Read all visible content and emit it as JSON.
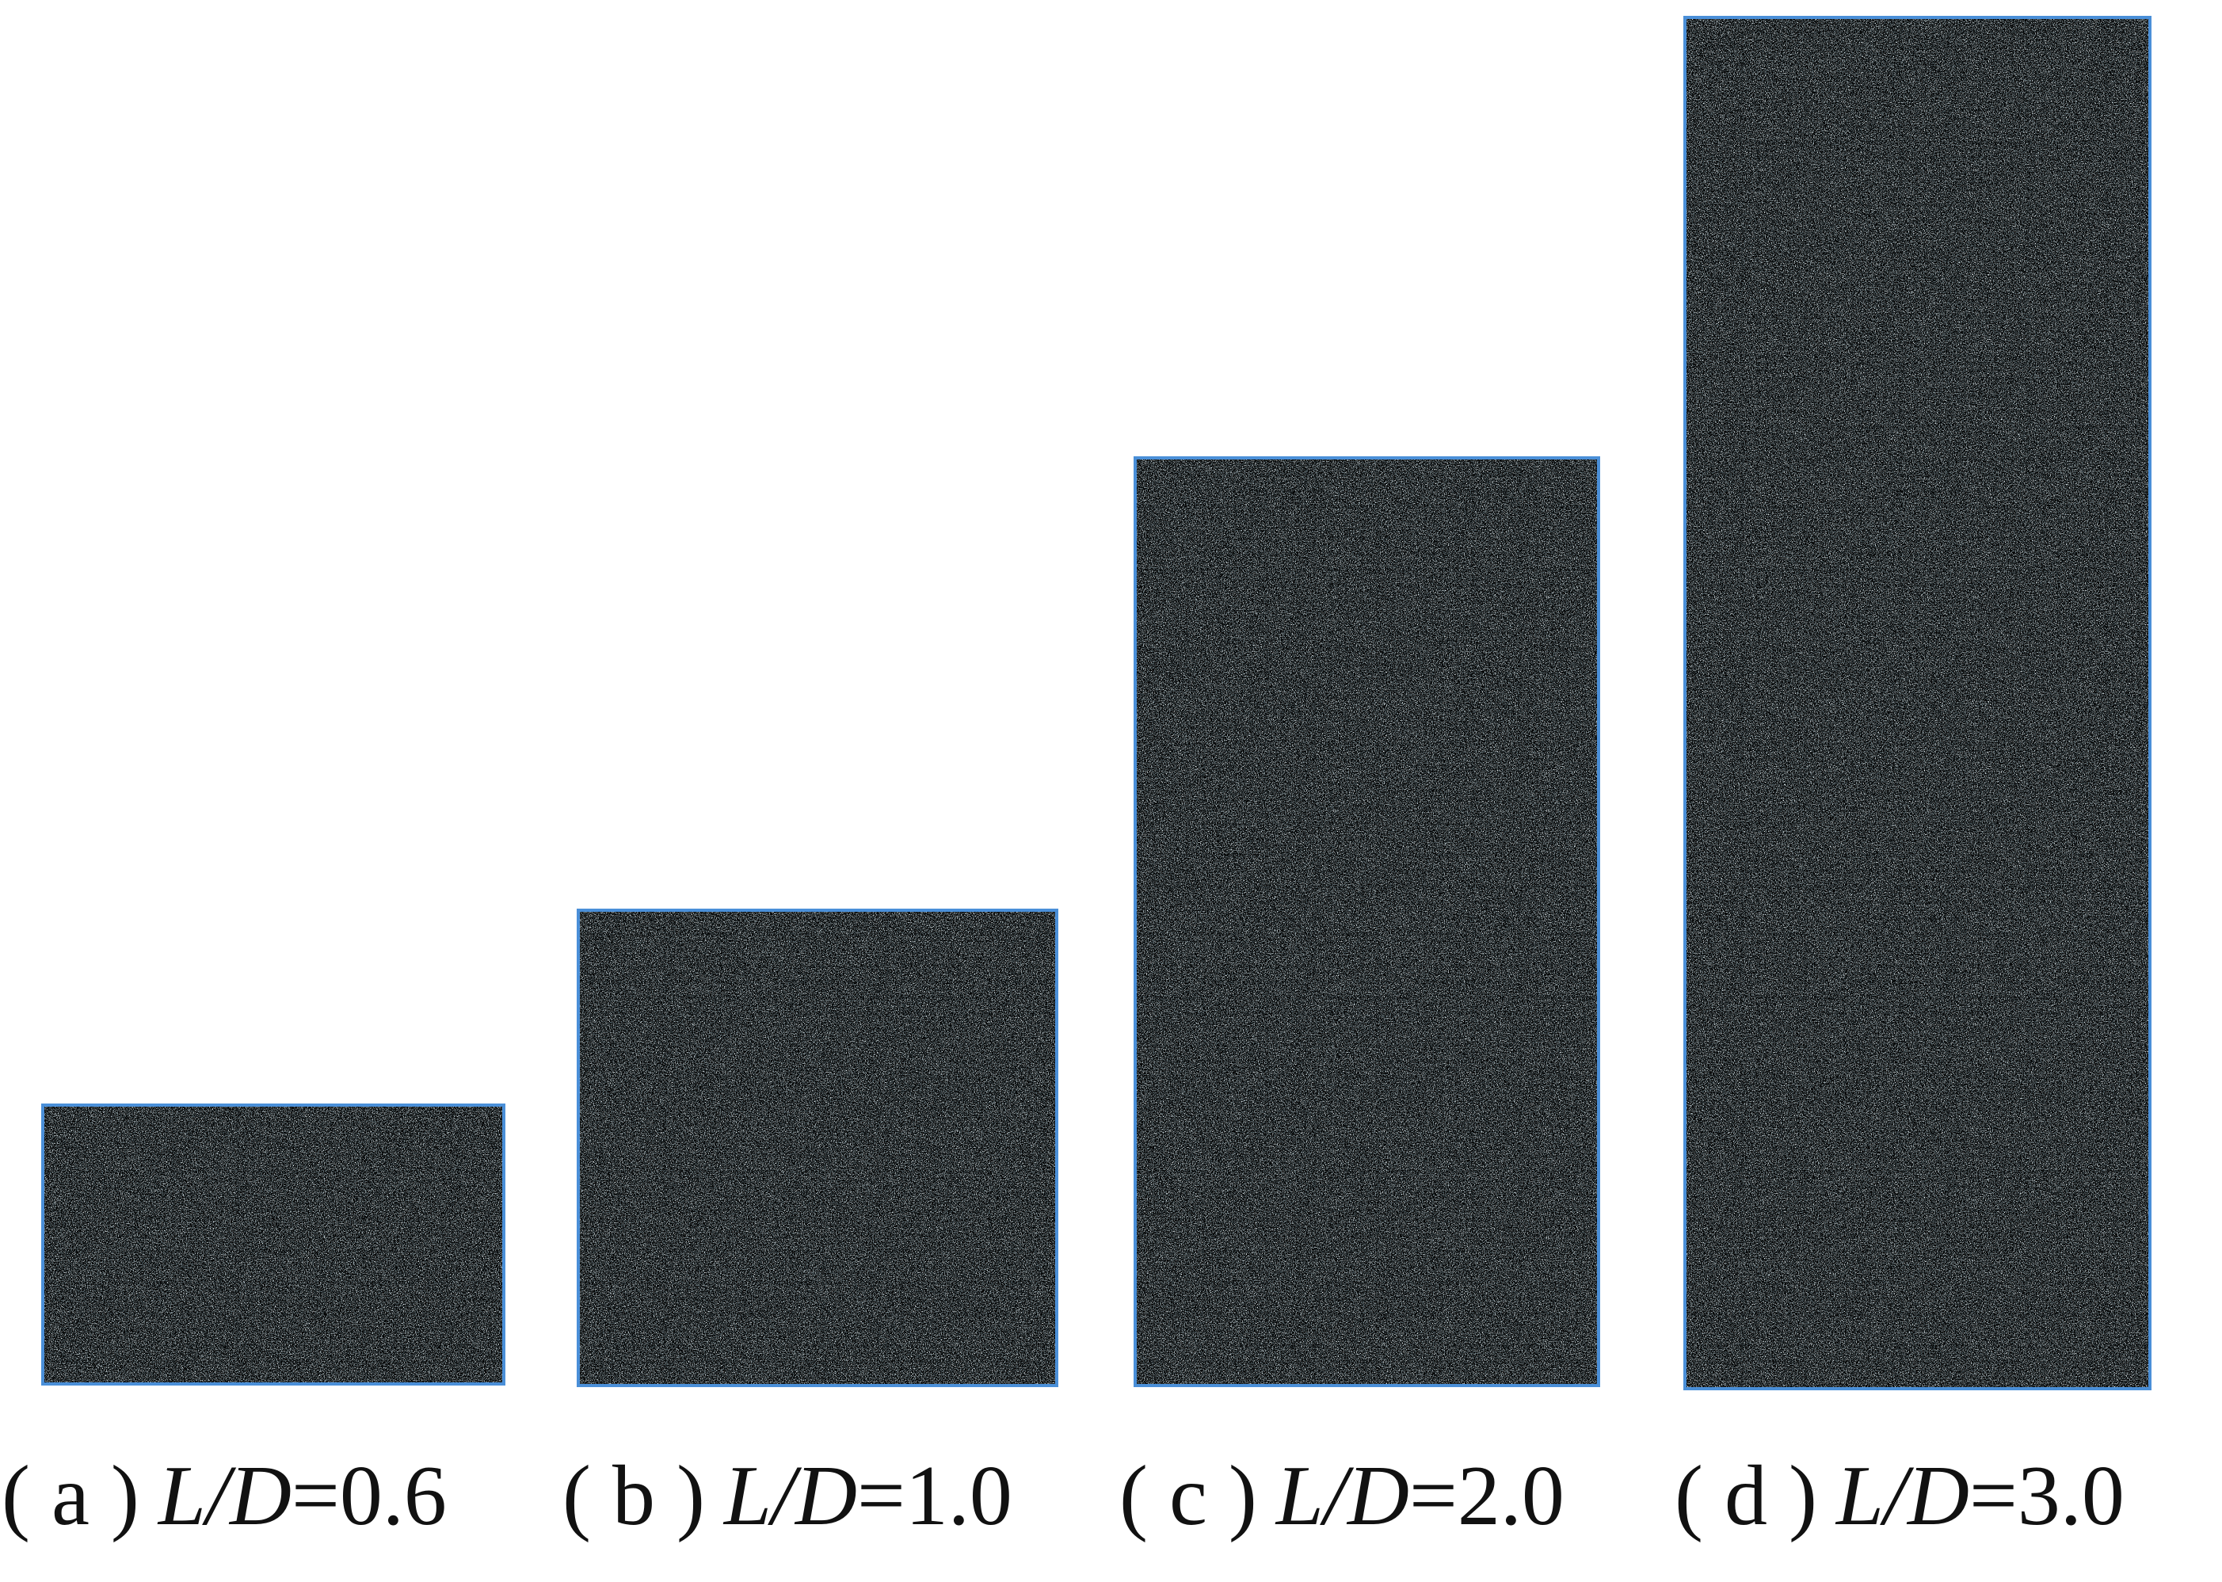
{
  "panels": [
    {
      "tag": "( a )",
      "ratio": "L/D",
      "value": "=0.6"
    },
    {
      "tag": "( b )",
      "ratio": "L/D",
      "value": "=1.0"
    },
    {
      "tag": "( c )",
      "ratio": "L/D",
      "value": "=2.0"
    },
    {
      "tag": "( d )",
      "ratio": "L/D",
      "value": "=3.0"
    }
  ]
}
